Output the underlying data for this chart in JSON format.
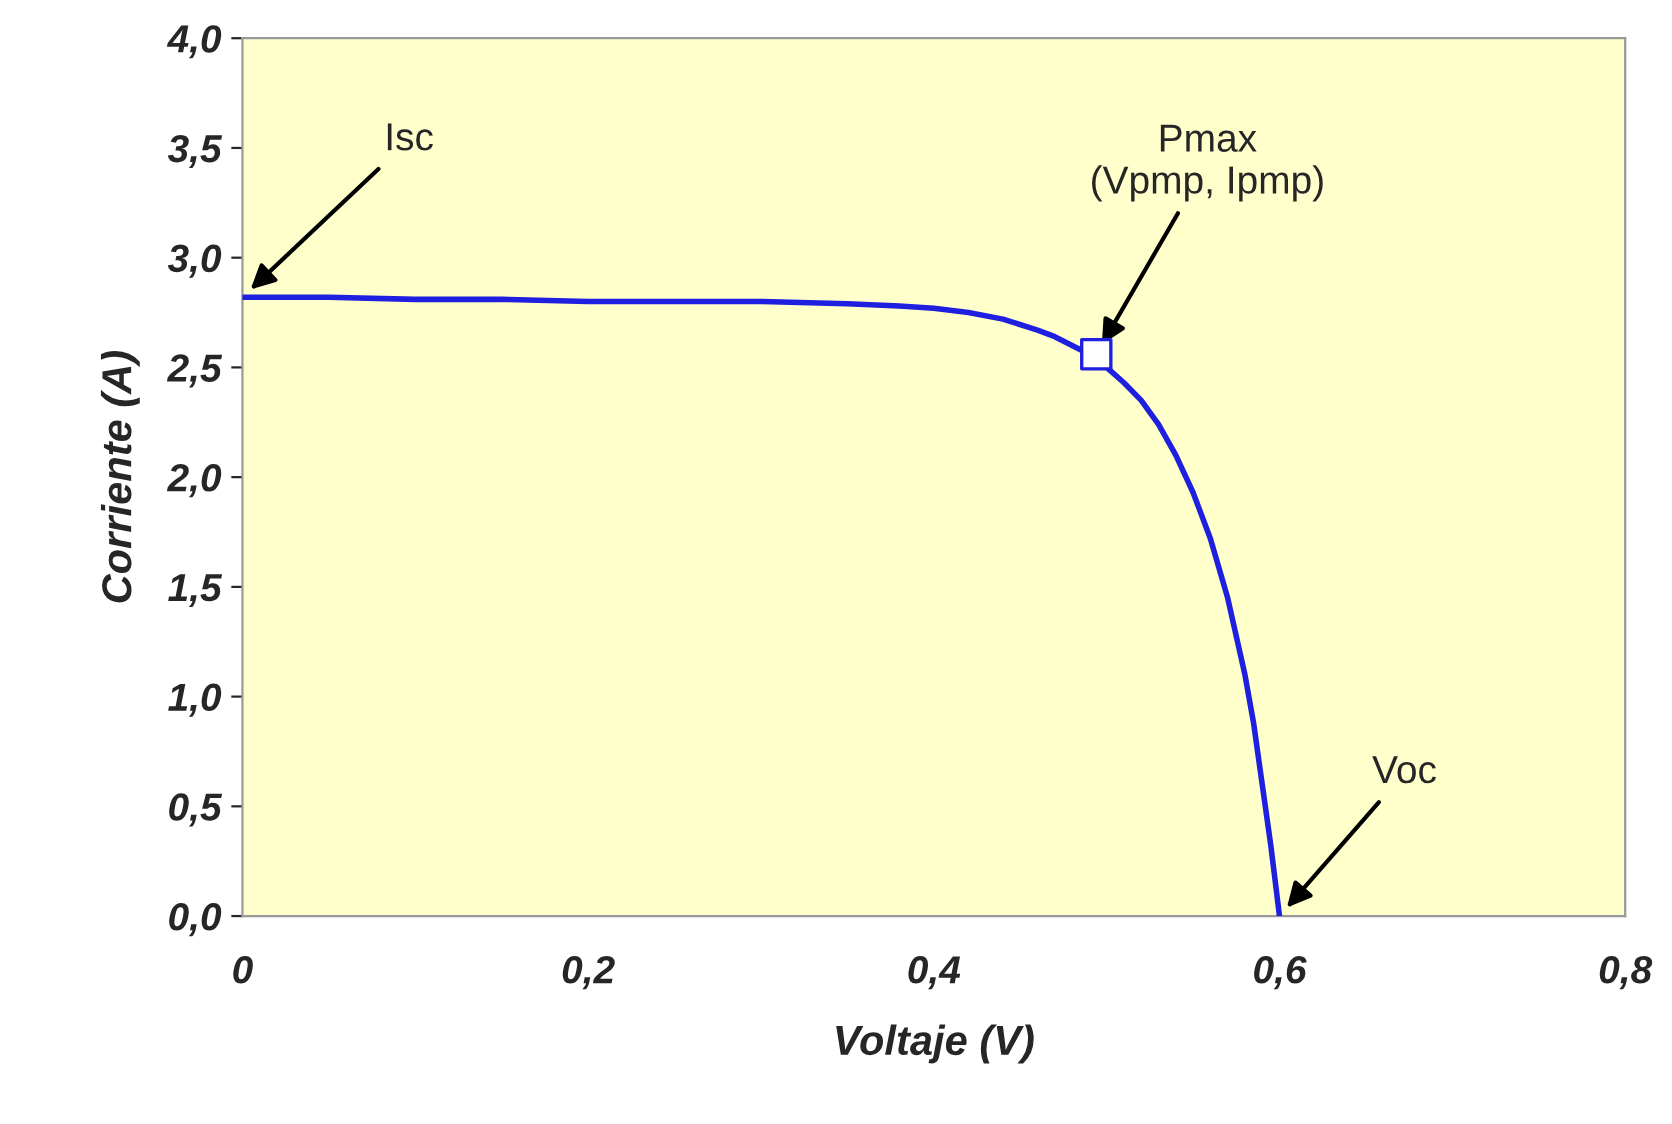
{
  "chart_data": {
    "type": "line",
    "xlabel": "Voltaje (V)",
    "ylabel": "Corriente (A)",
    "series": [
      {
        "color": "#1f1fe0",
        "marker": "none",
        "x": [
          0,
          0.05,
          0.1,
          0.15,
          0.2,
          0.25,
          0.3,
          0.35,
          0.38,
          0.4,
          0.42,
          0.44,
          0.46,
          0.47,
          0.48,
          0.49,
          0.5,
          0.51,
          0.52,
          0.53,
          0.54,
          0.55,
          0.56,
          0.57,
          0.58,
          0.585,
          0.59,
          0.595,
          0.6
        ],
        "values": [
          2.82,
          2.82,
          2.81,
          2.81,
          2.8,
          2.8,
          2.8,
          2.79,
          2.78,
          2.77,
          2.75,
          2.72,
          2.67,
          2.64,
          2.6,
          2.56,
          2.5,
          2.43,
          2.35,
          2.24,
          2.1,
          1.93,
          1.72,
          1.45,
          1.1,
          0.88,
          0.6,
          0.32,
          0.0
        ]
      },
      {
        "type": "scatter",
        "color": "#1f1fe0",
        "marker": "square",
        "x": [
          0.494
        ],
        "values": [
          2.56
        ]
      }
    ],
    "xlim": [
      0,
      0.8
    ],
    "ylim": [
      0,
      4.0
    ],
    "xticks": [
      0,
      {
        "value": 0.2,
        "label": "0,2"
      },
      {
        "value": 0.4,
        "label": "0,4"
      },
      {
        "value": 0.6,
        "label": "0,6"
      },
      {
        "value": 0.8,
        "label": "0,8"
      }
    ],
    "yticks": [
      {
        "value": 0,
        "label": "0,0"
      },
      {
        "value": 0.5,
        "label": "0,5"
      },
      {
        "value": 1.0,
        "label": "1,0"
      },
      {
        "value": 1.5,
        "label": "1,5"
      },
      {
        "value": 2.0,
        "label": "2,0"
      },
      {
        "value": 2.5,
        "label": "2,5"
      },
      {
        "value": 3.0,
        "label": "3,0"
      },
      {
        "value": 3.5,
        "label": "3,5"
      },
      {
        "value": 4.0,
        "label": "4,0"
      }
    ],
    "grid": false,
    "legend": false,
    "annotations": [
      {
        "text": "Isc",
        "x": 0,
        "y": 2.82
      },
      {
        "text": "Pmax\n(Vpmp, Ipmp)",
        "x": 0.494,
        "y": 2.56
      },
      {
        "text": "Voc",
        "x": 0.6,
        "y": 0.0
      }
    ]
  }
}
